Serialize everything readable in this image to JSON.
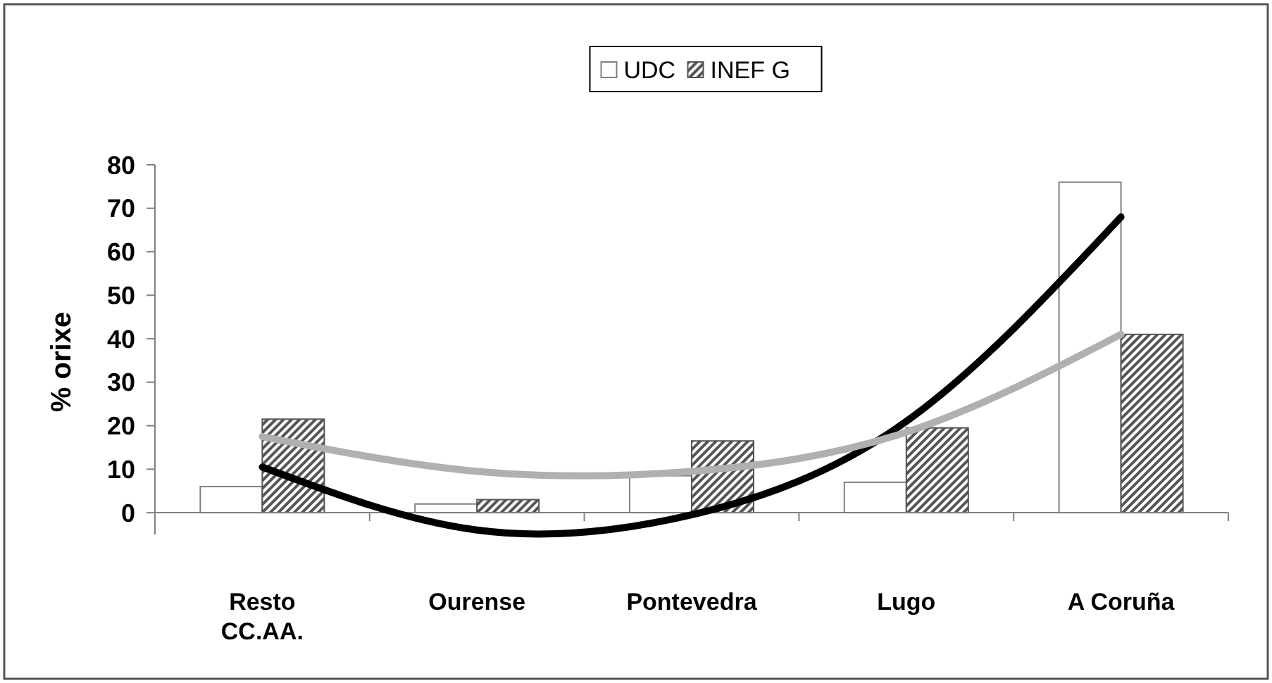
{
  "chart_data": {
    "type": "bar",
    "ylabel": "% orixe",
    "categories": [
      "Resto\nCC.AA.",
      "Ourense",
      "Pontevedra",
      "Lugo",
      "A Coruña"
    ],
    "series": [
      {
        "name": "UDC",
        "color": "#ffffff",
        "values": [
          6,
          2,
          8.5,
          7,
          76
        ]
      },
      {
        "name": "INEF G",
        "color": "#555555",
        "values": [
          21.5,
          3,
          16.5,
          19.5,
          41
        ]
      },
      {
        "type": "line",
        "color": "#000000",
        "values": [
          10.5,
          -4,
          -0.5,
          21,
          68
        ]
      },
      {
        "type": "line",
        "color": "#b0b0b0",
        "values": [
          17.5,
          9.5,
          9.5,
          18.5,
          41
        ]
      }
    ],
    "ylim": [
      -5,
      80
    ],
    "yticks": [
      0,
      10,
      20,
      30,
      40,
      50,
      60,
      70,
      80
    ],
    "legend": "top"
  }
}
